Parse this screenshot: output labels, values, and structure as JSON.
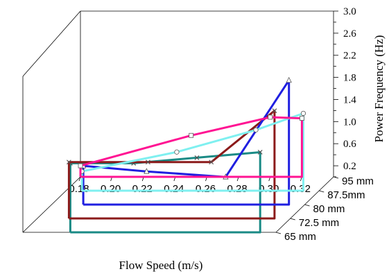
{
  "chart_data": {
    "type": "line",
    "title": "",
    "xlabel": "Flow Speed (m/s)",
    "zlabel": "Power Frequency (Hz)",
    "xlim": [
      0.18,
      0.34
    ],
    "zlim": [
      0.0,
      3.0
    ],
    "x_ticks": [
      "0.18",
      "0.20",
      "0.22",
      "0.24",
      "0.26",
      "0.28",
      "0.30",
      "0.32"
    ],
    "z_ticks": [
      "0.2",
      "0.6",
      "1.0",
      "1.4",
      "1.8",
      "2.2",
      "2.6",
      "3.0"
    ],
    "depth_labels": [
      "65 mm",
      "72.5 mm",
      "80 mm",
      "87.5mm",
      "95 mm"
    ],
    "series": [
      {
        "name": "65 mm",
        "color": "#1a8a85",
        "marker": "x",
        "x": [
          0.21,
          0.25,
          0.29,
          0.33
        ],
        "y": [
          1.25,
          1.25,
          1.35,
          1.45
        ]
      },
      {
        "name": "72.5 mm",
        "color": "#8b1a1a",
        "marker": "x",
        "x": [
          0.2,
          0.25,
          0.29,
          0.33
        ],
        "y": [
          1.02,
          1.02,
          1.02,
          1.95
        ]
      },
      {
        "name": "80 mm",
        "color": "#1f1fe0",
        "marker": "triangle",
        "x": [
          0.2,
          0.24,
          0.29,
          0.33
        ],
        "y": [
          0.7,
          0.6,
          0.5,
          2.25
        ]
      },
      {
        "name": "87.5mm",
        "color": "#7ff0f0",
        "marker": "circle",
        "x": [
          0.19,
          0.25,
          0.3,
          0.33
        ],
        "y": [
          0.35,
          0.7,
          1.1,
          1.4
        ]
      },
      {
        "name": "95 mm",
        "color": "#ff1493",
        "marker": "square",
        "x": [
          0.18,
          0.25,
          0.3,
          0.32
        ],
        "y": [
          0.2,
          0.75,
          1.08,
          1.06
        ]
      }
    ],
    "grid": false,
    "legend": "none"
  }
}
